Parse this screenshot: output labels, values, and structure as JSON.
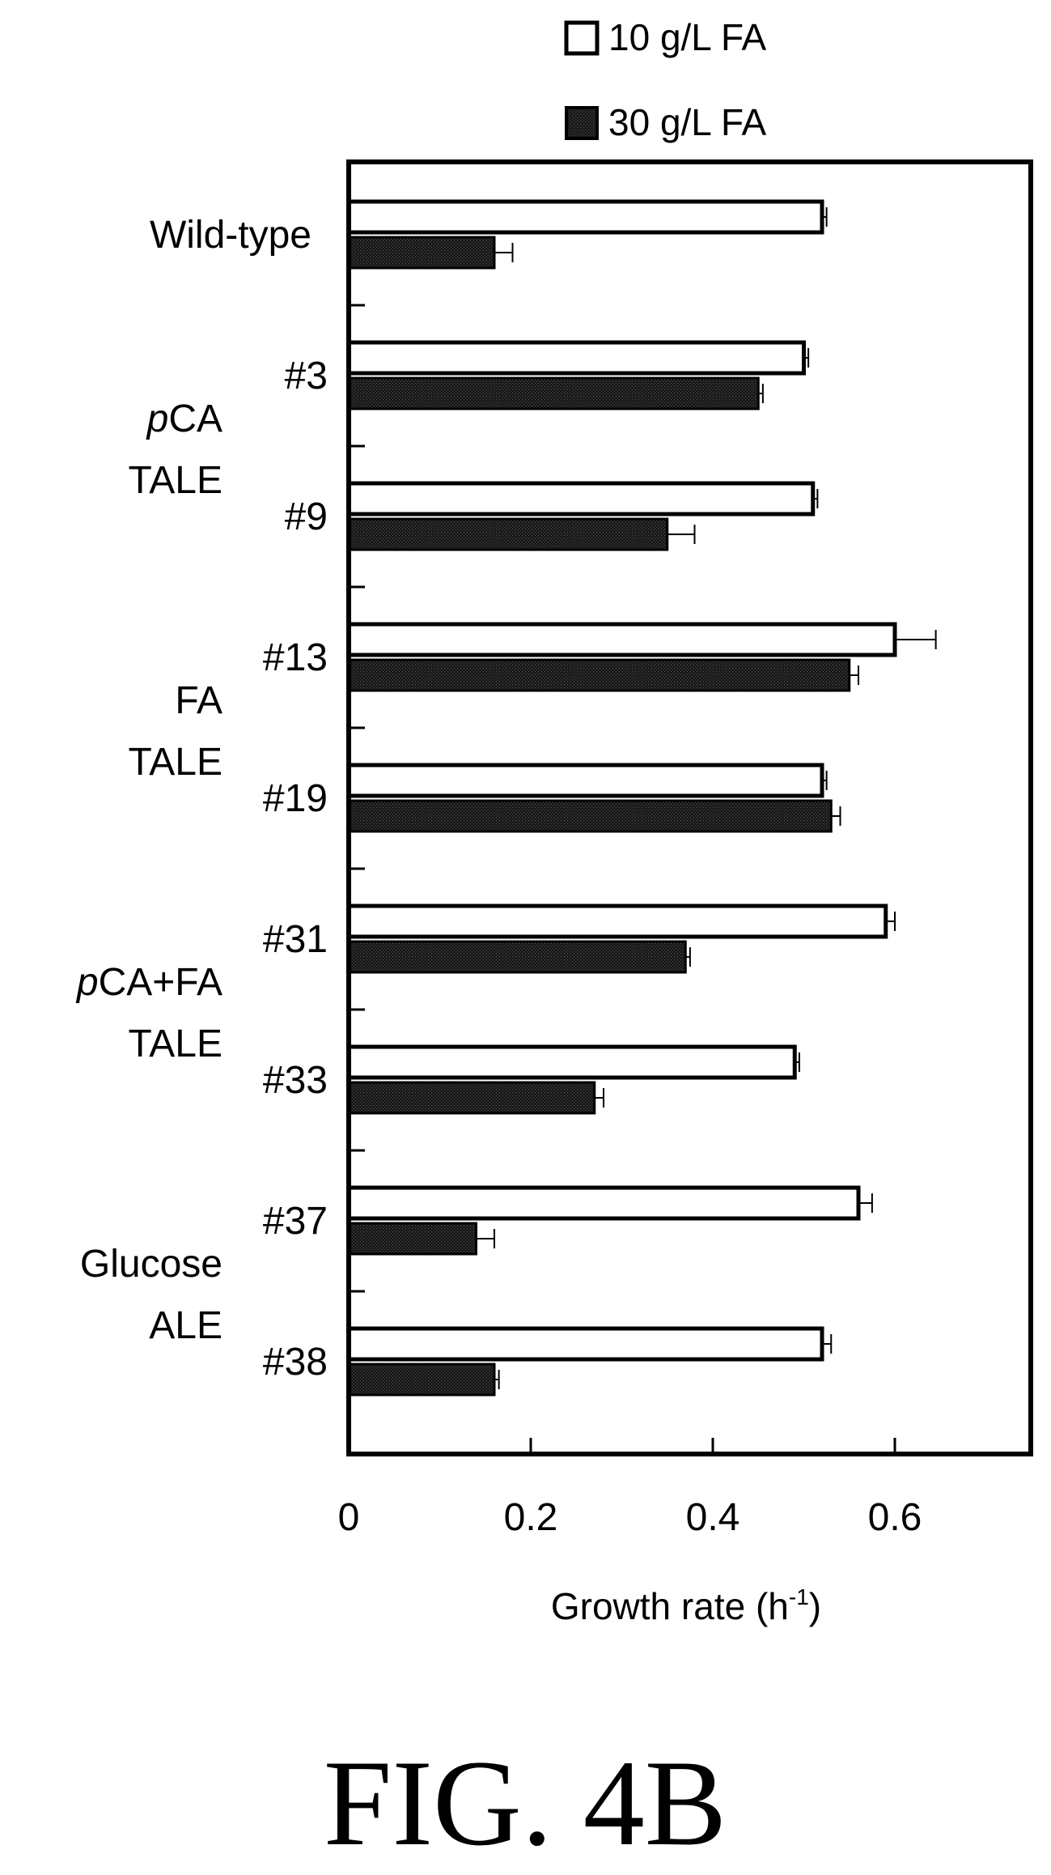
{
  "figure_label": "FIG. 4B",
  "chart_data": {
    "type": "bar",
    "orientation": "horizontal",
    "xlabel": "Growth rate (h",
    "xlabel_superscript": "-1",
    "xlabel_close": ")",
    "xlim": [
      0,
      0.75
    ],
    "xticks": [
      "0",
      "0.2",
      "0.4",
      "0.6"
    ],
    "xtick_values": [
      0,
      0.2,
      0.4,
      0.6
    ],
    "legend_position": "top",
    "categories": [
      "Wild-type",
      "#3",
      "#9",
      "#13",
      "#19",
      "#31",
      "#33",
      "#37",
      "#38"
    ],
    "groups": [
      {
        "lines": [],
        "rows": [
          0
        ]
      },
      {
        "lines": [
          "pCA",
          "TALE"
        ],
        "italic_prefix": "p",
        "rows": [
          1,
          2
        ]
      },
      {
        "lines": [
          "FA",
          "TALE"
        ],
        "italic_prefix": "",
        "rows": [
          3,
          4
        ]
      },
      {
        "lines": [
          "pCA+FA",
          "TALE"
        ],
        "italic_prefix": "p",
        "rows": [
          5,
          6
        ]
      },
      {
        "lines": [
          "Glucose",
          "ALE"
        ],
        "italic_prefix": "",
        "rows": [
          7,
          8
        ]
      }
    ],
    "series": [
      {
        "name": "10 g/L FA",
        "color": "#ffffff",
        "values": [
          0.52,
          0.5,
          0.51,
          0.6,
          0.52,
          0.59,
          0.49,
          0.56,
          0.52
        ],
        "errors": [
          0.005,
          0.005,
          0.005,
          0.045,
          0.005,
          0.01,
          0.005,
          0.015,
          0.01
        ]
      },
      {
        "name": "30 g/L FA",
        "color": "#1a1a1a",
        "values": [
          0.16,
          0.45,
          0.35,
          0.55,
          0.53,
          0.37,
          0.27,
          0.14,
          0.16
        ],
        "errors": [
          0.02,
          0.005,
          0.03,
          0.01,
          0.01,
          0.005,
          0.01,
          0.02,
          0.005
        ]
      }
    ]
  }
}
